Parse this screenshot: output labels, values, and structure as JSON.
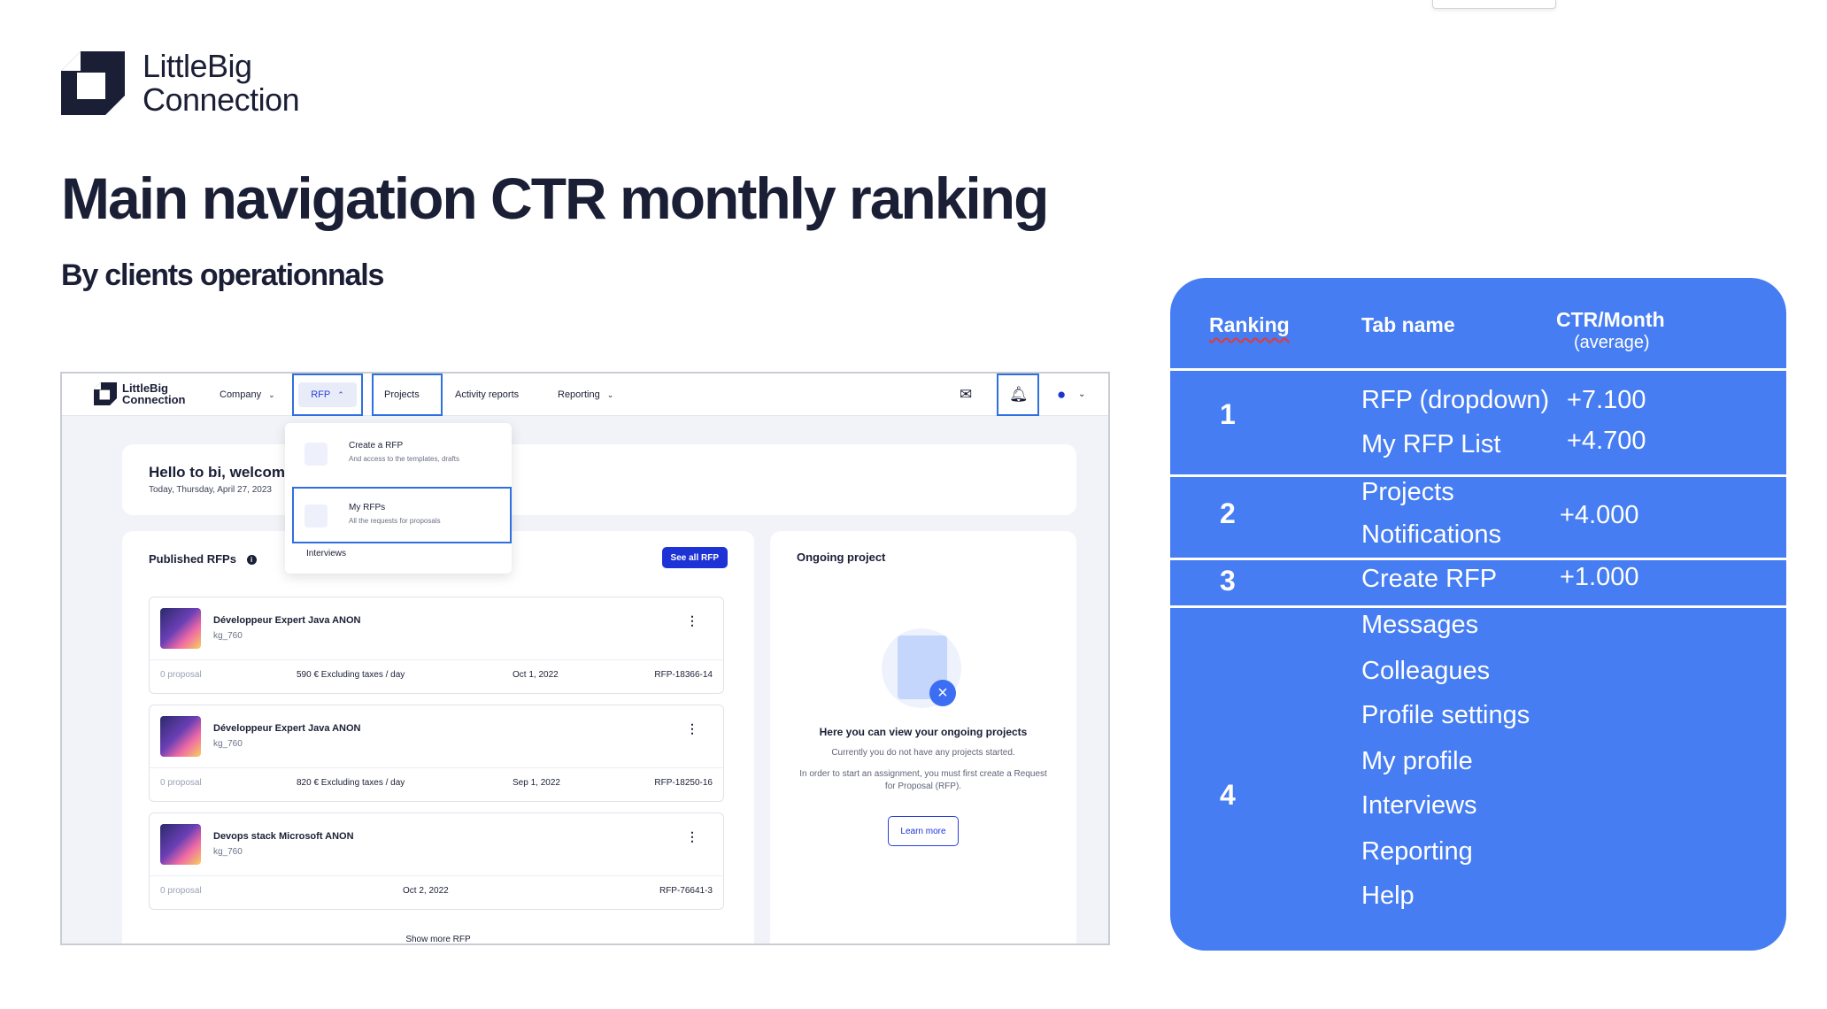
{
  "brand": {
    "name": "LittleBig\nConnection"
  },
  "title": "Main navigation CTR monthly ranking",
  "subtitle": "By clients operationnals",
  "app": {
    "logo_text": "LittleBig\nConnection",
    "nav": {
      "company": "Company",
      "rfp": "RFP",
      "projects": "Projects",
      "activity_reports": "Activity reports",
      "reporting": "Reporting"
    },
    "icons": [
      "mail-icon",
      "bell-icon",
      "user-icon"
    ],
    "welcome": {
      "title": "Hello to bi, welcome",
      "date": "Today, Thursday, April 27, 2023"
    },
    "dropdown": {
      "items": [
        {
          "title": "Create a RFP",
          "desc": "And access to the templates, drafts"
        },
        {
          "title": "My RFPs",
          "desc": "All the requests for proposals"
        }
      ],
      "interviews": "Interviews"
    },
    "published": {
      "title": "Published RFPs",
      "see_all": "See all RFP",
      "items": [
        {
          "name": "Développeur Expert Java ANON",
          "user": "kg_760",
          "proposals": "0 proposal",
          "rate": "590 € Excluding taxes / day",
          "date": "Oct 1, 2022",
          "ref": "RFP-18366-14"
        },
        {
          "name": "Développeur Expert Java ANON",
          "user": "kg_760",
          "proposals": "0 proposal",
          "rate": "820 € Excluding taxes / day",
          "date": "Sep 1, 2022",
          "ref": "RFP-18250-16"
        },
        {
          "name": "Devops stack Microsoft ANON",
          "user": "kg_760",
          "proposals": "0 proposal",
          "rate": "",
          "date": "Oct 2, 2022",
          "ref": "RFP-76641-3"
        }
      ],
      "show_more": "Show more RFP"
    },
    "ongoing": {
      "title": "Ongoing project",
      "heading": "Here you can view your ongoing projects",
      "line1": "Currently you do not have any projects started.",
      "line2": "In order to start an assignment, you must first create a Request for Proposal (RFP).",
      "learn_more": "Learn more"
    }
  },
  "ranking": {
    "headers": {
      "rank": "Ranking",
      "tab": "Tab name",
      "ctr": "CTR/Month",
      "ctr_sub": "(average)"
    },
    "groups": [
      {
        "rank": "1",
        "tabs": [
          "RFP (dropdown)",
          "My RFP List"
        ],
        "ctr": [
          "+7.100",
          "+4.700"
        ]
      },
      {
        "rank": "2",
        "tabs": [
          "Projects",
          "Notifications"
        ],
        "ctr": [
          "+4.000"
        ]
      },
      {
        "rank": "3",
        "tabs": [
          "Create RFP"
        ],
        "ctr": [
          "+1.000"
        ]
      },
      {
        "rank": "4",
        "tabs": [
          "Messages",
          "Colleagues",
          "Profile settings",
          "My profile",
          "Interviews",
          "Reporting",
          "Help"
        ],
        "ctr": []
      }
    ]
  },
  "colors": {
    "ranking_bg": "#467df2",
    "highlight": "#2f6fe0",
    "primary_button": "#1d33d6",
    "title_text": "#1b1f36"
  }
}
